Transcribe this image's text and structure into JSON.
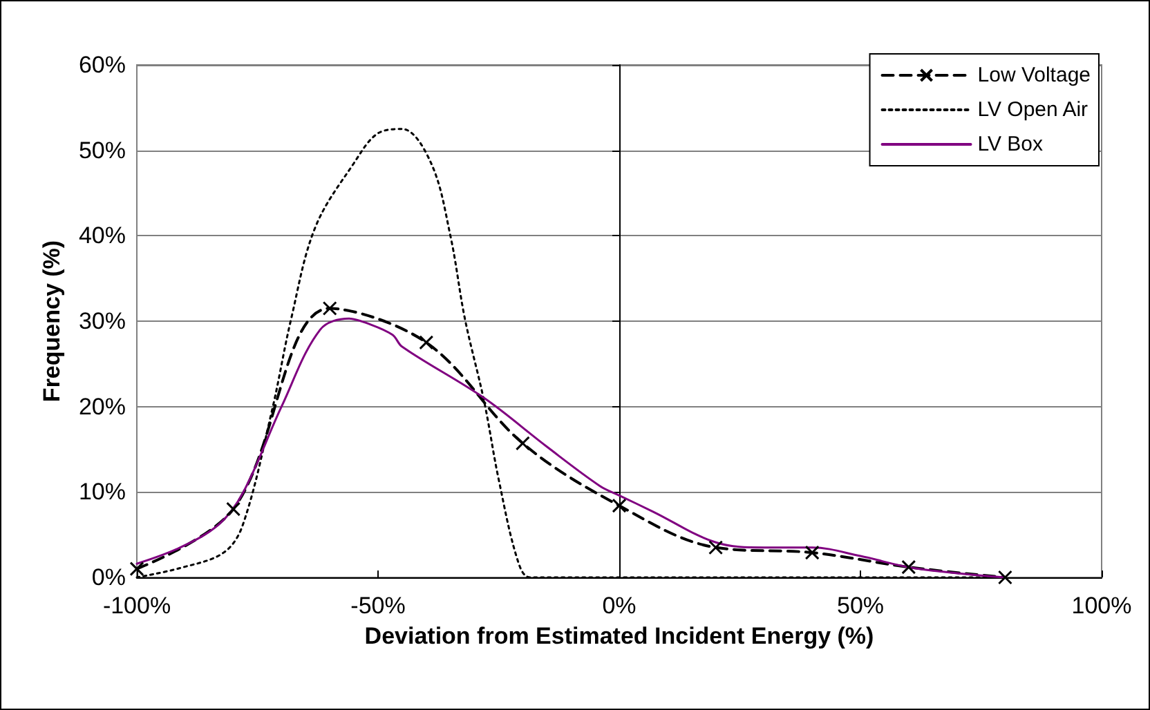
{
  "chart_data": {
    "type": "line",
    "xlabel": "Deviation from Estimated Incident Energy (%)",
    "ylabel": "Frequency (%)",
    "xlim": [
      -100,
      100
    ],
    "xticks": [
      {
        "value": -100,
        "label": "-100%"
      },
      {
        "value": -50,
        "label": "-50%"
      },
      {
        "value": 0,
        "label": "0%"
      },
      {
        "value": 50,
        "label": "50%"
      },
      {
        "value": 100,
        "label": "100%"
      }
    ],
    "ylim": [
      0,
      60
    ],
    "yticks": [
      {
        "value": 0,
        "label": "0%"
      },
      {
        "value": 10,
        "label": "10%"
      },
      {
        "value": 20,
        "label": "20%"
      },
      {
        "value": 30,
        "label": "30%"
      },
      {
        "value": 40,
        "label": "40%"
      },
      {
        "value": 50,
        "label": "50%"
      },
      {
        "value": 60,
        "label": "60%"
      }
    ],
    "grid": "y",
    "legend": "top right",
    "series": [
      {
        "name": "Low Voltage",
        "color": "#000000",
        "marker": "cross",
        "line_style": "dashed",
        "x": [
          -100,
          -80,
          -60,
          -40,
          -20,
          0,
          20,
          40,
          60,
          80
        ],
        "values": [
          1,
          8,
          31.5,
          27.5,
          15.7,
          8.4,
          3.5,
          2.9,
          1.2,
          0
        ]
      },
      {
        "name": "LV Open Air",
        "color": "#000000",
        "marker": "none",
        "line_style": "dotted",
        "x": [
          -100,
          -91,
          -82,
          -78,
          -72,
          -68,
          -63,
          -55,
          -50,
          -45,
          -39,
          -35,
          -32,
          -28,
          -25,
          -21,
          -18.5,
          0,
          80
        ],
        "values": [
          0,
          1.1,
          2.9,
          6.2,
          19.5,
          30.3,
          41,
          48.5,
          52,
          52.5,
          48.5,
          40,
          30.3,
          20.6,
          11.5,
          1.9,
          0,
          0,
          0
        ]
      },
      {
        "name": "LV Box",
        "color": "#800080",
        "marker": "none",
        "line_style": "solid",
        "x": [
          -100,
          -91,
          -83,
          -78,
          -70,
          -62,
          -56,
          -52,
          -47,
          -45,
          -28,
          -15,
          -4,
          0,
          7,
          20,
          30,
          40,
          50,
          61,
          80
        ],
        "values": [
          1.6,
          3.5,
          6.2,
          9.9,
          20,
          29,
          30.3,
          29.7,
          28.4,
          27,
          21,
          15.3,
          10.7,
          9.6,
          7.7,
          4.1,
          3.5,
          3.5,
          2.5,
          1.1,
          0
        ]
      }
    ]
  }
}
